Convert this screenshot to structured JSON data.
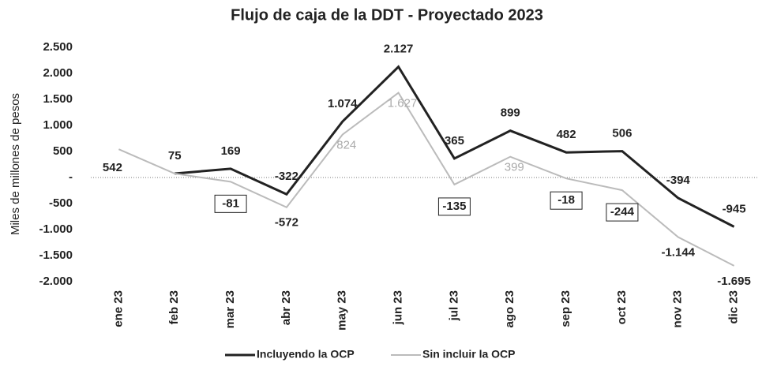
{
  "chart_data": {
    "type": "line",
    "title": "Flujo de caja de la DDT - Proyectado 2023",
    "y_label": "Miles de millones de pesos",
    "categories": [
      "ene 23",
      "feb 23",
      "mar 23",
      "abr 23",
      "may 23",
      "jun 23",
      "jul 23",
      "ago 23",
      "sep 23",
      "oct 23",
      "nov 23",
      "dic 23"
    ],
    "series": [
      {
        "name": "Incluyendo la OCP",
        "color": "#222222",
        "values": [
          null,
          75,
          169,
          -322,
          1074,
          2127,
          365,
          899,
          482,
          506,
          -394,
          -945
        ],
        "value_labels": [
          null,
          "75",
          "169",
          "-322",
          "1.074",
          "2.127",
          "365",
          "899",
          "482",
          "506",
          "-394",
          "-945"
        ]
      },
      {
        "name": "Sin incluir la OCP",
        "color": "#bbbbbb",
        "values": [
          542,
          75,
          -81,
          -572,
          824,
          1627,
          -135,
          399,
          -18,
          -244,
          -1144,
          -1695
        ],
        "value_labels": [
          "542",
          null,
          "-81",
          "-572",
          "824",
          "1.627",
          "-135",
          "399",
          "-18",
          "-244",
          "-1.144",
          "-1.695"
        ]
      }
    ],
    "ylim": [
      -2000,
      2500
    ],
    "yticks": [
      {
        "value": -2000,
        "label": "-2.000"
      },
      {
        "value": -1500,
        "label": "-1.500"
      },
      {
        "value": -1000,
        "label": "-1.000"
      },
      -500,
      {
        "value": 0,
        "label": "-"
      },
      500,
      {
        "value": 1000,
        "label": "1.000"
      },
      {
        "value": 1500,
        "label": "1.500"
      },
      {
        "value": 2000,
        "label": "2.000"
      },
      {
        "value": 2500,
        "label": "2.500"
      }
    ],
    "legend": "bottom"
  }
}
